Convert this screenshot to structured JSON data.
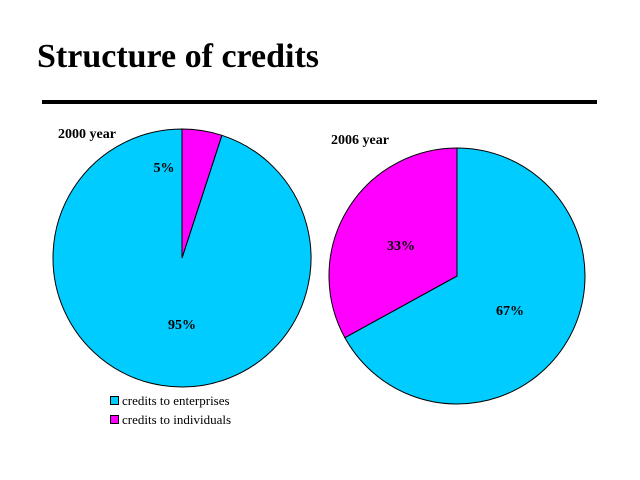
{
  "slide": {
    "title": "Structure of credits"
  },
  "colors": {
    "enterprises": "#00CCFF",
    "individuals": "#FF00FF",
    "outline": "#000000"
  },
  "chart_data": [
    {
      "type": "pie",
      "title": "2000 year",
      "categories": [
        "credits to enterprises",
        "credits to individuals"
      ],
      "values": [
        95,
        5
      ],
      "labels": [
        "95%",
        "5%"
      ]
    },
    {
      "type": "pie",
      "title": "2006 year",
      "categories": [
        "credits to enterprises",
        "credits to individuals"
      ],
      "values": [
        67,
        33
      ],
      "labels": [
        "67%",
        "33%"
      ]
    }
  ],
  "legend": {
    "items": [
      {
        "label": "credits to enterprises",
        "color": "#00CCFF"
      },
      {
        "label": "credits to individuals",
        "color": "#FF00FF"
      }
    ]
  }
}
